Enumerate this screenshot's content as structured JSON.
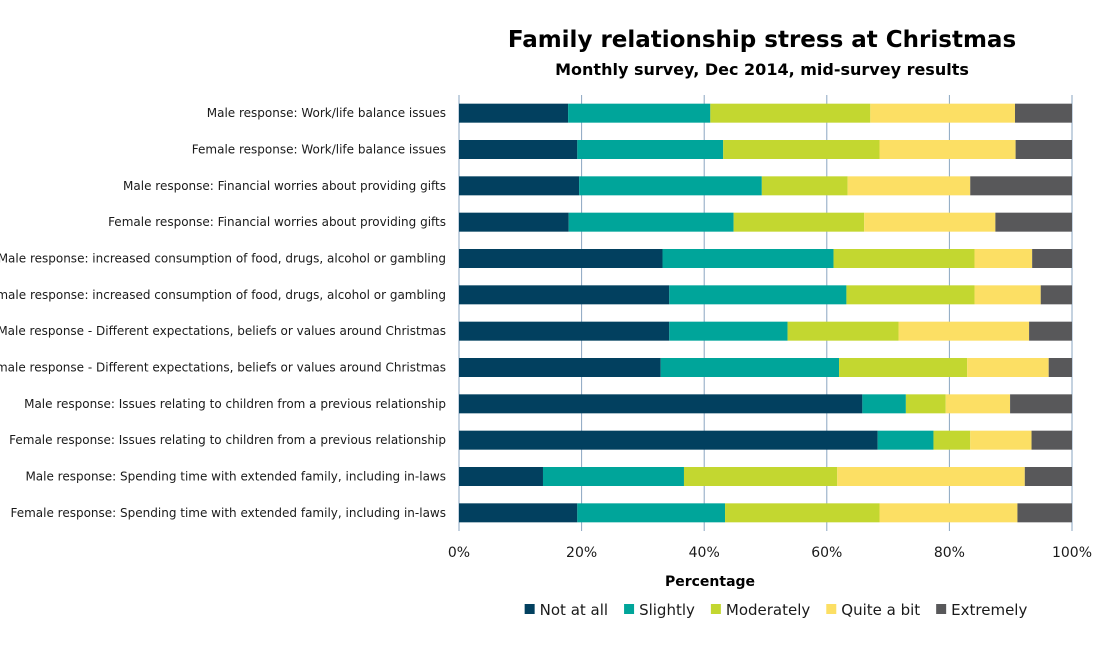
{
  "chart_data": {
    "type": "bar",
    "orientation": "horizontal",
    "stacked": true,
    "title": "Family relationship stress at Christmas",
    "subtitle": "Monthly survey, Dec 2014, mid-survey results",
    "xlabel": "Percentage",
    "xlim": [
      0,
      100
    ],
    "xticks": [
      "0%",
      "20%",
      "40%",
      "60%",
      "80%",
      "100%"
    ],
    "grid": "vertical",
    "legend_position": "bottom",
    "categories": [
      "Male response: Work/life balance issues",
      "Female response: Work/life balance issues",
      "Male response: Financial worries about providing gifts",
      "Female response: Financial worries about providing gifts",
      "Male response: increased consumption of food, drugs, alcohol or gambling",
      "Female response: increased consumption of food, drugs, alcohol or gambling",
      "Male response - Different expectations, beliefs or values around Christmas",
      "Female response - Different expectations, beliefs or values around Christmas",
      "Male response: Issues relating to children from a previous relationship",
      "Female response: Issues relating to children from a previous relationship",
      "Male response: Spending time with extended family, including in-laws",
      "Female response: Spending time with extended family, including in-laws"
    ],
    "series": [
      {
        "name": "Not at all",
        "color": "#02405f",
        "values": [
          17.8,
          19.3,
          19.6,
          17.9,
          33.2,
          34.3,
          34.3,
          32.9,
          65.8,
          68.3,
          13.7,
          19.3
        ]
      },
      {
        "name": "Slightly",
        "color": "#00a59a",
        "values": [
          23.2,
          23.8,
          29.8,
          26.9,
          27.9,
          28.9,
          19.3,
          29.1,
          7.1,
          9.1,
          23.0,
          24.1
        ]
      },
      {
        "name": "Moderately",
        "color": "#c3d730",
        "values": [
          26.1,
          25.5,
          14.0,
          21.3,
          23.0,
          20.9,
          18.1,
          20.9,
          6.5,
          6.0,
          25.0,
          25.2
        ]
      },
      {
        "name": "Quite a bit",
        "color": "#fcdf64",
        "values": [
          23.6,
          22.2,
          20.0,
          21.4,
          9.4,
          10.8,
          21.3,
          13.3,
          10.5,
          10.0,
          30.6,
          22.5
        ]
      },
      {
        "name": "Extremely",
        "color": "#58585a",
        "values": [
          9.3,
          9.2,
          16.6,
          12.5,
          6.5,
          5.1,
          7.0,
          3.8,
          10.1,
          6.6,
          7.7,
          8.9
        ]
      }
    ]
  }
}
